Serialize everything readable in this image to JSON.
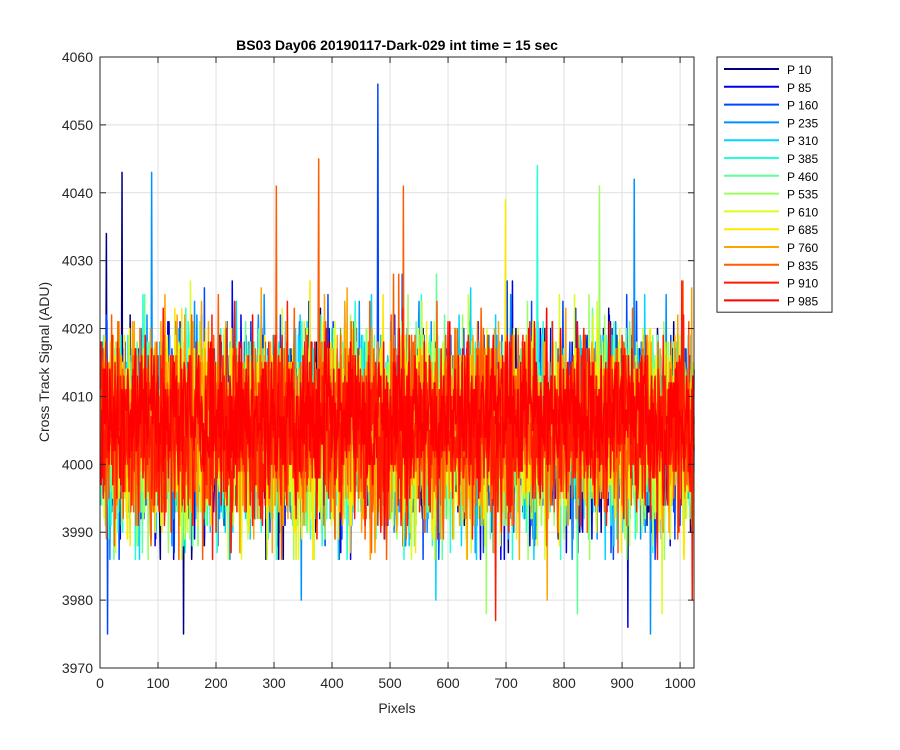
{
  "chart_data": {
    "type": "line",
    "title": "BS03 Day06 20190117-Dark-029 int time = 15 sec",
    "xlabel": "Pixels",
    "ylabel": "Cross Track Signal (ADU)",
    "xlim": [
      0,
      1024
    ],
    "ylim": [
      3970,
      4060
    ],
    "xticks": [
      0,
      100,
      200,
      300,
      400,
      500,
      600,
      700,
      800,
      900,
      1000
    ],
    "yticks": [
      3970,
      3980,
      3990,
      4000,
      4010,
      4020,
      4030,
      4040,
      4050,
      4060
    ],
    "grid": true,
    "legend_position": "outside-top-right",
    "n_points_per_series": 1024,
    "series": [
      {
        "name": "P 10",
        "color": "#00007f",
        "mean": 4005,
        "spread": 7,
        "peaks": [
          [
            37,
            4043
          ],
          [
            10,
            4034
          ],
          [
            143,
            3975
          ]
        ]
      },
      {
        "name": "P 85",
        "color": "#0000e5",
        "mean": 4005,
        "spread": 7,
        "peaks": [
          [
            909,
            3976
          ],
          [
            287,
            3988
          ]
        ]
      },
      {
        "name": "P 160",
        "color": "#0047ff",
        "mean": 4005,
        "spread": 7,
        "peaks": [
          [
            478,
            4056
          ],
          [
            12,
            3975
          ]
        ]
      },
      {
        "name": "P 235",
        "color": "#0090ff",
        "mean": 4005,
        "spread": 7,
        "peaks": [
          [
            88,
            4043
          ],
          [
            920,
            4042
          ],
          [
            948,
            3975
          ],
          [
            346,
            3980
          ]
        ]
      },
      {
        "name": "P 310",
        "color": "#00d4ff",
        "mean": 4005,
        "spread": 7,
        "peaks": [
          [
            578,
            3980
          ]
        ]
      },
      {
        "name": "P 385",
        "color": "#23ffd7",
        "mean": 4005,
        "spread": 7,
        "peaks": [
          [
            753,
            4044
          ]
        ]
      },
      {
        "name": "P 460",
        "color": "#5fff9b",
        "mean": 4005,
        "spread": 7,
        "peaks": [
          [
            822,
            3978
          ]
        ]
      },
      {
        "name": "P 535",
        "color": "#9bff5f",
        "mean": 4005,
        "spread": 7,
        "peaks": [
          [
            665,
            3978
          ],
          [
            860,
            4041
          ]
        ]
      },
      {
        "name": "P 610",
        "color": "#d7ff23",
        "mean": 4005,
        "spread": 7,
        "peaks": [
          [
            968,
            3978
          ]
        ]
      },
      {
        "name": "P 685",
        "color": "#ffe800",
        "mean": 4005,
        "spread": 7,
        "peaks": [
          [
            698,
            4039
          ]
        ]
      },
      {
        "name": "P 760",
        "color": "#ffa300",
        "mean": 4005,
        "spread": 7,
        "peaks": [
          [
            770,
            3980
          ]
        ]
      },
      {
        "name": "P 835",
        "color": "#ff5e00",
        "mean": 4005,
        "spread": 7,
        "peaks": [
          [
            376,
            4045
          ],
          [
            303,
            4041
          ],
          [
            522,
            4041
          ]
        ]
      },
      {
        "name": "P 910",
        "color": "#ff1900",
        "mean": 4005,
        "spread": 7,
        "peaks": [
          [
            681,
            3977
          ],
          [
            1020,
            3980
          ]
        ]
      },
      {
        "name": "P 985",
        "color": "#ff0000",
        "mean": 4007,
        "spread": 5,
        "peaks": []
      }
    ]
  }
}
